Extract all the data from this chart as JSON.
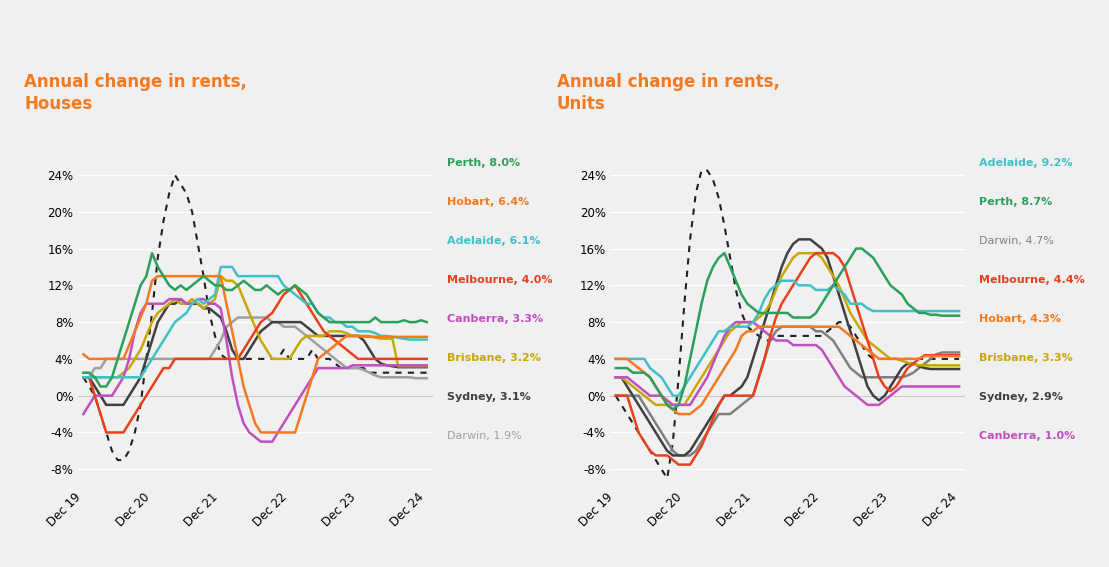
{
  "background_color": "#f0f0f0",
  "title_color": "#f47920",
  "title_houses": "Annual change in rents,\nHouses",
  "title_units": "Annual change in rents,\nUnits",
  "x_labels": [
    "Dec 19",
    "Dec 20",
    "Dec 21",
    "Dec 22",
    "Dec 23",
    "Dec 24"
  ],
  "x_ticks": [
    0,
    12,
    24,
    36,
    48,
    60
  ],
  "ylim": [
    -0.1,
    0.27
  ],
  "yticks": [
    -0.08,
    -0.04,
    0.0,
    0.04,
    0.08,
    0.12,
    0.16,
    0.2,
    0.24
  ],
  "houses": {
    "Perth": {
      "color": "#2ca05a",
      "values": [
        0.025,
        0.025,
        0.02,
        0.01,
        0.01,
        0.02,
        0.04,
        0.06,
        0.08,
        0.1,
        0.12,
        0.13,
        0.155,
        0.14,
        0.13,
        0.12,
        0.115,
        0.12,
        0.115,
        0.12,
        0.125,
        0.13,
        0.125,
        0.12,
        0.12,
        0.115,
        0.115,
        0.12,
        0.125,
        0.12,
        0.115,
        0.115,
        0.12,
        0.115,
        0.11,
        0.115,
        0.115,
        0.12,
        0.115,
        0.11,
        0.1,
        0.09,
        0.085,
        0.08,
        0.08,
        0.08,
        0.08,
        0.08,
        0.08,
        0.08,
        0.08,
        0.085,
        0.08,
        0.08,
        0.08,
        0.08,
        0.082,
        0.08,
        0.08,
        0.082,
        0.08
      ]
    },
    "Hobart": {
      "color": "#f47920",
      "values": [
        0.045,
        0.04,
        0.04,
        0.04,
        0.04,
        0.04,
        0.04,
        0.04,
        0.055,
        0.07,
        0.085,
        0.1,
        0.125,
        0.13,
        0.13,
        0.13,
        0.13,
        0.13,
        0.13,
        0.13,
        0.13,
        0.13,
        0.13,
        0.13,
        0.13,
        0.1,
        0.07,
        0.04,
        0.01,
        -0.01,
        -0.03,
        -0.04,
        -0.04,
        -0.04,
        -0.04,
        -0.04,
        -0.04,
        -0.04,
        -0.02,
        0.0,
        0.02,
        0.04,
        0.045,
        0.05,
        0.055,
        0.06,
        0.065,
        0.065,
        0.065,
        0.064,
        0.064,
        0.064,
        0.064,
        0.064,
        0.064,
        0.064,
        0.064,
        0.064,
        0.064,
        0.064,
        0.064
      ]
    },
    "Adelaide": {
      "color": "#40c0c8",
      "values": [
        0.02,
        0.02,
        0.02,
        0.02,
        0.02,
        0.02,
        0.02,
        0.02,
        0.02,
        0.02,
        0.02,
        0.03,
        0.04,
        0.05,
        0.06,
        0.07,
        0.08,
        0.085,
        0.09,
        0.1,
        0.105,
        0.1,
        0.105,
        0.11,
        0.14,
        0.14,
        0.14,
        0.13,
        0.13,
        0.13,
        0.13,
        0.13,
        0.13,
        0.13,
        0.13,
        0.12,
        0.115,
        0.11,
        0.105,
        0.1,
        0.1,
        0.09,
        0.085,
        0.085,
        0.08,
        0.08,
        0.075,
        0.075,
        0.07,
        0.07,
        0.07,
        0.068,
        0.065,
        0.065,
        0.064,
        0.063,
        0.062,
        0.061,
        0.061,
        0.061,
        0.061
      ]
    },
    "Melbourne": {
      "color": "#e8401c",
      "values": [
        0.02,
        0.02,
        0.0,
        -0.02,
        -0.04,
        -0.04,
        -0.04,
        -0.04,
        -0.03,
        -0.02,
        -0.01,
        0.0,
        0.01,
        0.02,
        0.03,
        0.03,
        0.04,
        0.04,
        0.04,
        0.04,
        0.04,
        0.04,
        0.04,
        0.04,
        0.04,
        0.04,
        0.04,
        0.04,
        0.05,
        0.06,
        0.07,
        0.08,
        0.085,
        0.09,
        0.1,
        0.11,
        0.115,
        0.12,
        0.11,
        0.1,
        0.09,
        0.08,
        0.07,
        0.065,
        0.06,
        0.055,
        0.05,
        0.045,
        0.04,
        0.04,
        0.04,
        0.04,
        0.04,
        0.04,
        0.04,
        0.04,
        0.04,
        0.04,
        0.04,
        0.04,
        0.04
      ]
    },
    "Canberra": {
      "color": "#c050c0",
      "values": [
        -0.02,
        -0.01,
        0.0,
        0.0,
        0.0,
        0.0,
        0.01,
        0.02,
        0.04,
        0.07,
        0.09,
        0.1,
        0.1,
        0.1,
        0.1,
        0.105,
        0.105,
        0.105,
        0.1,
        0.1,
        0.105,
        0.105,
        0.1,
        0.1,
        0.095,
        0.06,
        0.02,
        -0.01,
        -0.03,
        -0.04,
        -0.045,
        -0.05,
        -0.05,
        -0.05,
        -0.04,
        -0.03,
        -0.02,
        -0.01,
        0.0,
        0.01,
        0.02,
        0.03,
        0.03,
        0.03,
        0.03,
        0.03,
        0.03,
        0.033,
        0.033,
        0.033,
        0.033,
        0.033,
        0.033,
        0.033,
        0.033,
        0.033,
        0.033,
        0.033,
        0.033,
        0.033,
        0.033
      ]
    },
    "Brisbane": {
      "color": "#c8a800",
      "values": [
        0.02,
        0.02,
        0.02,
        0.02,
        0.02,
        0.02,
        0.02,
        0.025,
        0.03,
        0.04,
        0.05,
        0.065,
        0.08,
        0.09,
        0.095,
        0.1,
        0.105,
        0.1,
        0.1,
        0.105,
        0.1,
        0.095,
        0.1,
        0.105,
        0.13,
        0.125,
        0.125,
        0.12,
        0.105,
        0.09,
        0.075,
        0.06,
        0.05,
        0.04,
        0.04,
        0.04,
        0.04,
        0.05,
        0.06,
        0.065,
        0.065,
        0.065,
        0.065,
        0.07,
        0.07,
        0.07,
        0.068,
        0.065,
        0.065,
        0.065,
        0.065,
        0.063,
        0.062,
        0.062,
        0.062,
        0.032,
        0.032,
        0.032,
        0.032,
        0.032,
        0.032
      ]
    },
    "Sydney": {
      "color": "#404040",
      "values": [
        0.02,
        0.02,
        0.01,
        0.0,
        -0.01,
        -0.01,
        -0.01,
        -0.01,
        0.0,
        0.01,
        0.02,
        0.04,
        0.06,
        0.08,
        0.09,
        0.1,
        0.1,
        0.105,
        0.1,
        0.1,
        0.1,
        0.095,
        0.095,
        0.09,
        0.085,
        0.07,
        0.05,
        0.04,
        0.04,
        0.05,
        0.06,
        0.07,
        0.075,
        0.08,
        0.08,
        0.08,
        0.08,
        0.08,
        0.08,
        0.075,
        0.07,
        0.065,
        0.065,
        0.065,
        0.065,
        0.065,
        0.065,
        0.065,
        0.065,
        0.06,
        0.05,
        0.04,
        0.035,
        0.033,
        0.032,
        0.031,
        0.031,
        0.031,
        0.031,
        0.031,
        0.031
      ]
    },
    "Darwin": {
      "color": "#a0a0a0",
      "values": [
        0.02,
        0.02,
        0.03,
        0.03,
        0.04,
        0.04,
        0.04,
        0.04,
        0.04,
        0.04,
        0.04,
        0.04,
        0.04,
        0.04,
        0.04,
        0.04,
        0.04,
        0.04,
        0.04,
        0.04,
        0.04,
        0.04,
        0.04,
        0.05,
        0.06,
        0.075,
        0.08,
        0.085,
        0.085,
        0.085,
        0.085,
        0.085,
        0.085,
        0.08,
        0.08,
        0.075,
        0.075,
        0.075,
        0.07,
        0.065,
        0.06,
        0.055,
        0.05,
        0.045,
        0.04,
        0.035,
        0.03,
        0.03,
        0.03,
        0.028,
        0.025,
        0.022,
        0.02,
        0.02,
        0.02,
        0.02,
        0.02,
        0.02,
        0.019,
        0.019,
        0.019
      ]
    },
    "Darwin_dotted": {
      "color": "#202020",
      "values": [
        0.02,
        0.01,
        0.0,
        -0.02,
        -0.04,
        -0.06,
        -0.07,
        -0.07,
        -0.06,
        -0.04,
        -0.01,
        0.04,
        0.09,
        0.15,
        0.19,
        0.22,
        0.24,
        0.23,
        0.22,
        0.2,
        0.165,
        0.13,
        0.09,
        0.065,
        0.045,
        0.04,
        0.04,
        0.04,
        0.04,
        0.04,
        0.04,
        0.04,
        0.04,
        0.04,
        0.04,
        0.05,
        0.04,
        0.04,
        0.04,
        0.04,
        0.05,
        0.04,
        0.04,
        0.04,
        0.035,
        0.03,
        0.03,
        0.03,
        0.03,
        0.03,
        0.025,
        0.025,
        0.025,
        0.025,
        0.025,
        0.025,
        0.025,
        0.025,
        0.025,
        0.025,
        0.025
      ]
    }
  },
  "units": {
    "Adelaide": {
      "color": "#40c0c8",
      "values": [
        0.04,
        0.04,
        0.04,
        0.04,
        0.04,
        0.04,
        0.03,
        0.025,
        0.02,
        0.01,
        0.0,
        0.0,
        0.01,
        0.02,
        0.03,
        0.04,
        0.05,
        0.06,
        0.07,
        0.07,
        0.075,
        0.075,
        0.075,
        0.075,
        0.08,
        0.09,
        0.105,
        0.115,
        0.12,
        0.125,
        0.125,
        0.125,
        0.12,
        0.12,
        0.12,
        0.115,
        0.115,
        0.115,
        0.12,
        0.115,
        0.11,
        0.1,
        0.1,
        0.1,
        0.095,
        0.092,
        0.092,
        0.092,
        0.092,
        0.092,
        0.092,
        0.092,
        0.092,
        0.092,
        0.092,
        0.092,
        0.092,
        0.092,
        0.092,
        0.092,
        0.092
      ]
    },
    "Perth": {
      "color": "#2ca05a",
      "values": [
        0.03,
        0.03,
        0.03,
        0.025,
        0.025,
        0.025,
        0.02,
        0.01,
        0.0,
        -0.01,
        -0.015,
        -0.01,
        0.01,
        0.04,
        0.07,
        0.1,
        0.125,
        0.14,
        0.15,
        0.155,
        0.14,
        0.125,
        0.11,
        0.1,
        0.095,
        0.09,
        0.09,
        0.09,
        0.09,
        0.09,
        0.09,
        0.085,
        0.085,
        0.085,
        0.085,
        0.09,
        0.1,
        0.11,
        0.12,
        0.13,
        0.14,
        0.15,
        0.16,
        0.16,
        0.155,
        0.15,
        0.14,
        0.13,
        0.12,
        0.115,
        0.11,
        0.1,
        0.095,
        0.09,
        0.09,
        0.088,
        0.088,
        0.087,
        0.087,
        0.087,
        0.087
      ]
    },
    "Darwin": {
      "color": "#808080",
      "values": [
        0.0,
        0.0,
        0.0,
        0.0,
        0.0,
        -0.01,
        -0.02,
        -0.03,
        -0.04,
        -0.05,
        -0.06,
        -0.065,
        -0.065,
        -0.065,
        -0.06,
        -0.05,
        -0.04,
        -0.03,
        -0.02,
        -0.02,
        -0.02,
        -0.015,
        -0.01,
        -0.005,
        0.0,
        0.02,
        0.04,
        0.06,
        0.07,
        0.075,
        0.075,
        0.075,
        0.075,
        0.075,
        0.075,
        0.07,
        0.07,
        0.065,
        0.06,
        0.05,
        0.04,
        0.03,
        0.025,
        0.02,
        0.02,
        0.02,
        0.02,
        0.02,
        0.02,
        0.02,
        0.02,
        0.022,
        0.025,
        0.03,
        0.035,
        0.04,
        0.045,
        0.047,
        0.047,
        0.047,
        0.047
      ]
    },
    "Melbourne": {
      "color": "#e8401c",
      "values": [
        0.0,
        0.0,
        0.0,
        -0.02,
        -0.04,
        -0.05,
        -0.06,
        -0.065,
        -0.065,
        -0.065,
        -0.07,
        -0.075,
        -0.075,
        -0.075,
        -0.065,
        -0.055,
        -0.04,
        -0.025,
        -0.01,
        0.0,
        0.0,
        0.0,
        0.0,
        0.0,
        0.0,
        0.02,
        0.04,
        0.065,
        0.085,
        0.1,
        0.11,
        0.12,
        0.13,
        0.14,
        0.15,
        0.155,
        0.155,
        0.155,
        0.155,
        0.15,
        0.14,
        0.12,
        0.1,
        0.08,
        0.06,
        0.04,
        0.02,
        0.01,
        0.005,
        0.01,
        0.02,
        0.03,
        0.035,
        0.04,
        0.044,
        0.044,
        0.044,
        0.044,
        0.044,
        0.044,
        0.044
      ]
    },
    "Hobart": {
      "color": "#f47920",
      "values": [
        0.04,
        0.04,
        0.04,
        0.035,
        0.03,
        0.025,
        0.02,
        0.01,
        0.0,
        -0.01,
        -0.015,
        -0.02,
        -0.02,
        -0.02,
        -0.015,
        -0.01,
        0.0,
        0.01,
        0.02,
        0.03,
        0.04,
        0.05,
        0.065,
        0.07,
        0.07,
        0.075,
        0.075,
        0.075,
        0.075,
        0.075,
        0.075,
        0.075,
        0.075,
        0.075,
        0.075,
        0.075,
        0.075,
        0.075,
        0.075,
        0.075,
        0.07,
        0.065,
        0.06,
        0.055,
        0.05,
        0.045,
        0.04,
        0.04,
        0.04,
        0.04,
        0.04,
        0.04,
        0.04,
        0.04,
        0.043,
        0.043,
        0.043,
        0.043,
        0.043,
        0.043,
        0.043
      ]
    },
    "Brisbane": {
      "color": "#c8a800",
      "values": [
        0.02,
        0.02,
        0.015,
        0.01,
        0.005,
        0.0,
        -0.005,
        -0.01,
        -0.01,
        -0.01,
        -0.01,
        -0.01,
        -0.01,
        0.0,
        0.01,
        0.02,
        0.03,
        0.04,
        0.05,
        0.06,
        0.07,
        0.075,
        0.08,
        0.08,
        0.08,
        0.085,
        0.09,
        0.1,
        0.115,
        0.13,
        0.14,
        0.15,
        0.155,
        0.155,
        0.155,
        0.155,
        0.15,
        0.14,
        0.13,
        0.12,
        0.105,
        0.09,
        0.08,
        0.07,
        0.06,
        0.055,
        0.05,
        0.045,
        0.04,
        0.04,
        0.038,
        0.036,
        0.034,
        0.033,
        0.033,
        0.033,
        0.033,
        0.033,
        0.033,
        0.033,
        0.033
      ]
    },
    "Sydney": {
      "color": "#404040",
      "values": [
        0.02,
        0.02,
        0.01,
        0.0,
        -0.01,
        -0.02,
        -0.03,
        -0.04,
        -0.05,
        -0.06,
        -0.065,
        -0.065,
        -0.065,
        -0.06,
        -0.05,
        -0.04,
        -0.03,
        -0.02,
        -0.01,
        0.0,
        0.0,
        0.005,
        0.01,
        0.02,
        0.04,
        0.06,
        0.08,
        0.1,
        0.12,
        0.14,
        0.155,
        0.165,
        0.17,
        0.17,
        0.17,
        0.165,
        0.16,
        0.15,
        0.13,
        0.11,
        0.09,
        0.07,
        0.05,
        0.03,
        0.01,
        0.0,
        -0.005,
        0.0,
        0.01,
        0.02,
        0.03,
        0.035,
        0.035,
        0.032,
        0.03,
        0.029,
        0.029,
        0.029,
        0.029,
        0.029,
        0.029
      ]
    },
    "Canberra": {
      "color": "#c050c0",
      "values": [
        0.02,
        0.02,
        0.02,
        0.015,
        0.01,
        0.005,
        0.0,
        0.0,
        0.0,
        -0.005,
        -0.01,
        -0.01,
        -0.01,
        -0.01,
        0.0,
        0.01,
        0.02,
        0.035,
        0.05,
        0.065,
        0.075,
        0.08,
        0.08,
        0.08,
        0.08,
        0.075,
        0.07,
        0.065,
        0.06,
        0.06,
        0.06,
        0.055,
        0.055,
        0.055,
        0.055,
        0.055,
        0.05,
        0.04,
        0.03,
        0.02,
        0.01,
        0.005,
        0.0,
        -0.005,
        -0.01,
        -0.01,
        -0.01,
        -0.005,
        0.0,
        0.005,
        0.01,
        0.01,
        0.01,
        0.01,
        0.01,
        0.01,
        0.01,
        0.01,
        0.01,
        0.01,
        0.01
      ]
    },
    "Darwin_dotted": {
      "color": "#202020",
      "values": [
        0.0,
        -0.01,
        -0.02,
        -0.03,
        -0.04,
        -0.05,
        -0.06,
        -0.07,
        -0.08,
        -0.09,
        -0.05,
        0.02,
        0.1,
        0.17,
        0.22,
        0.245,
        0.245,
        0.235,
        0.215,
        0.185,
        0.15,
        0.115,
        0.09,
        0.075,
        0.07,
        0.065,
        0.06,
        0.06,
        0.065,
        0.065,
        0.065,
        0.065,
        0.065,
        0.065,
        0.065,
        0.065,
        0.065,
        0.07,
        0.075,
        0.08,
        0.08,
        0.075,
        0.065,
        0.055,
        0.045,
        0.04,
        0.04,
        0.04,
        0.04,
        0.04,
        0.04,
        0.04,
        0.04,
        0.04,
        0.04,
        0.04,
        0.04,
        0.04,
        0.04,
        0.04,
        0.04
      ]
    }
  },
  "houses_legend": [
    {
      "label": "Perth, 8.0%",
      "color": "#2ca05a",
      "bold": true
    },
    {
      "label": "Hobart, 6.4%",
      "color": "#f47920",
      "bold": true
    },
    {
      "label": "Adelaide, 6.1%",
      "color": "#40c0c8",
      "bold": true
    },
    {
      "label": "Melbourne, 4.0%",
      "color": "#e8401c",
      "bold": true
    },
    {
      "label": "Canberra, 3.3%",
      "color": "#c050c0",
      "bold": true
    },
    {
      "label": "Brisbane, 3.2%",
      "color": "#c8a800",
      "bold": true
    },
    {
      "label": "Sydney, 3.1%",
      "color": "#404040",
      "bold": true
    },
    {
      "label": "Darwin, 1.9%",
      "color": "#a0a0a0",
      "bold": false
    }
  ],
  "units_legend": [
    {
      "label": "Adelaide, 9.2%",
      "color": "#40c0c8",
      "bold": true
    },
    {
      "label": "Perth, 8.7%",
      "color": "#2ca05a",
      "bold": true
    },
    {
      "label": "Darwin, 4.7%",
      "color": "#808080",
      "bold": false
    },
    {
      "label": "Melbourne, 4.4%",
      "color": "#e8401c",
      "bold": true
    },
    {
      "label": "Hobart, 4.3%",
      "color": "#f47920",
      "bold": true
    },
    {
      "label": "Brisbane, 3.3%",
      "color": "#c8a800",
      "bold": true
    },
    {
      "label": "Sydney, 2.9%",
      "color": "#404040",
      "bold": true
    },
    {
      "label": "Canberra, 1.0%",
      "color": "#c050c0",
      "bold": true
    }
  ]
}
